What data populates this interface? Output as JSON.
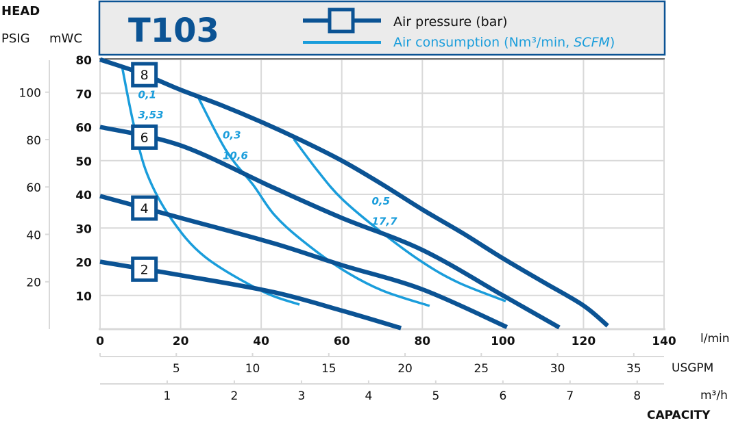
{
  "chart_data": {
    "type": "line",
    "title": "T103",
    "head_label": "HEAD",
    "y_axes": [
      {
        "label": "PSIG",
        "ticks": [
          20,
          40,
          60,
          80,
          100
        ]
      },
      {
        "label": "mWC",
        "range": [
          0,
          80
        ],
        "ticks": [
          10,
          20,
          30,
          40,
          50,
          60,
          70,
          80
        ]
      }
    ],
    "x_axes": [
      {
        "label": "l/min",
        "range": [
          0,
          140
        ],
        "ticks": [
          0,
          20,
          40,
          60,
          80,
          100,
          120,
          140
        ]
      },
      {
        "label": "USGPM",
        "ticks": [
          5,
          10,
          15,
          20,
          25,
          30,
          35
        ]
      },
      {
        "label": "m³/h",
        "ticks": [
          1,
          2,
          3,
          4,
          5,
          6,
          7,
          8
        ]
      }
    ],
    "xlabel": "CAPACITY",
    "grid": true,
    "legend": {
      "placement": "top",
      "entries": [
        {
          "label": "Air pressure (bar)",
          "color": "#0b5394"
        },
        {
          "label_main": "Air consumption (Nm³/min, ",
          "label_italic": "SCFM",
          "label_end": ")",
          "color": "#1a9ddb"
        }
      ]
    },
    "pressure_series": [
      {
        "name": "8",
        "points": [
          [
            0,
            80
          ],
          [
            10,
            76
          ],
          [
            20,
            71
          ],
          [
            30,
            66.5
          ],
          [
            40,
            61.5
          ],
          [
            50,
            56
          ],
          [
            60,
            50
          ],
          [
            70,
            43
          ],
          [
            80,
            35.5
          ],
          [
            90,
            28.5
          ],
          [
            100,
            21
          ],
          [
            110,
            14
          ],
          [
            120,
            7
          ],
          [
            126,
            1
          ]
        ]
      },
      {
        "name": "6",
        "points": [
          [
            0,
            60
          ],
          [
            20,
            54.5
          ],
          [
            43,
            42
          ],
          [
            60,
            33
          ],
          [
            80,
            23.5
          ],
          [
            100,
            10
          ],
          [
            114,
            0.5
          ]
        ]
      },
      {
        "name": "4",
        "points": [
          [
            0,
            39.5
          ],
          [
            20,
            33
          ],
          [
            43,
            25.5
          ],
          [
            60,
            19
          ],
          [
            80,
            11.8
          ],
          [
            101,
            0.6
          ]
        ]
      },
      {
        "name": "2",
        "points": [
          [
            0,
            20
          ],
          [
            20,
            16
          ],
          [
            43,
            11
          ],
          [
            60,
            5.5
          ],
          [
            74.7,
            0.3
          ]
        ]
      }
    ],
    "consumption_series": [
      {
        "label1": "0,1",
        "label2": "3,53",
        "points": [
          [
            5.4,
            78.3
          ],
          [
            8.3,
            61
          ],
          [
            11.7,
            46
          ],
          [
            17.7,
            32.7
          ],
          [
            26,
            21.5
          ],
          [
            40,
            11.4
          ],
          [
            49.5,
            7.3
          ]
        ]
      },
      {
        "label1": "0,3",
        "label2": "10,6",
        "points": [
          [
            24.1,
            69.4
          ],
          [
            31.3,
            53
          ],
          [
            38,
            42.8
          ],
          [
            43.2,
            34
          ],
          [
            50,
            26.5
          ],
          [
            60,
            17.8
          ],
          [
            70,
            11.5
          ],
          [
            81.8,
            6.9
          ]
        ]
      },
      {
        "label1": "0,5",
        "label2": "17,7",
        "points": [
          [
            48.1,
            56.4
          ],
          [
            54,
            47
          ],
          [
            60,
            38.7
          ],
          [
            69.4,
            29.2
          ],
          [
            80,
            19.9
          ],
          [
            89,
            13.8
          ],
          [
            100.7,
            8.3
          ]
        ]
      }
    ],
    "colors": {
      "pressure": "#0b5394",
      "consumption": "#1a9ddb",
      "grid": "#d9d9d9",
      "header_bg": "#ebebeb"
    }
  }
}
